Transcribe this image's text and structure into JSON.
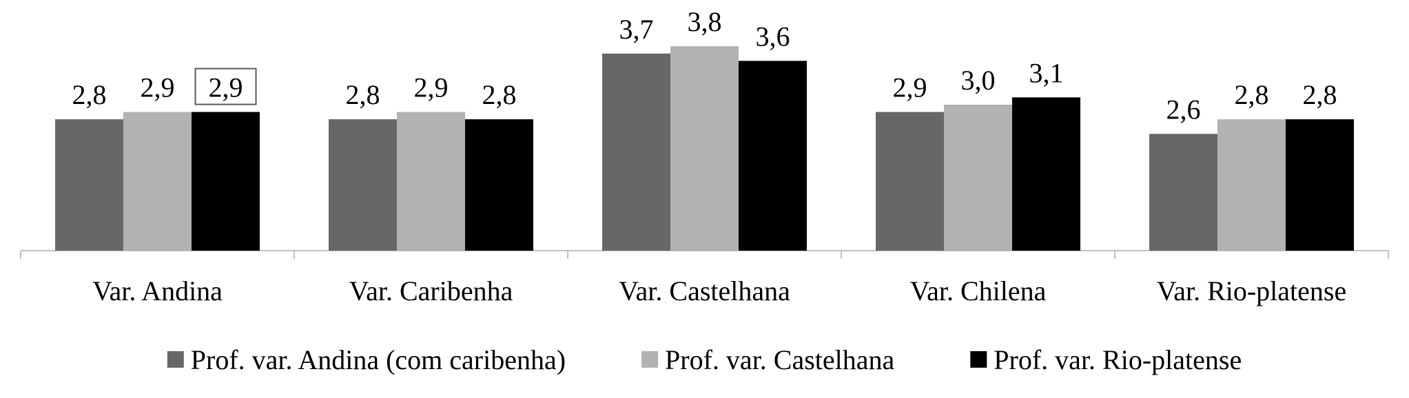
{
  "chart_data": {
    "type": "bar",
    "title": "",
    "xlabel": "",
    "ylabel": "",
    "categories": [
      "Var. Andina",
      "Var. Caribenha",
      "Var. Castelhana",
      "Var. Chilena",
      "Var. Rio-platense"
    ],
    "series": [
      {
        "name": "Prof. var. Andina (com caribenha)",
        "color": "#676767",
        "values": [
          2.8,
          2.8,
          3.7,
          2.9,
          2.6
        ],
        "labels": [
          "2,8",
          "2,8",
          "3,7",
          "2,9",
          "2,6"
        ]
      },
      {
        "name": "Prof. var. Castelhana",
        "color": "#b2b2b2",
        "values": [
          2.9,
          2.9,
          3.8,
          3.0,
          2.8
        ],
        "labels": [
          "2,9",
          "2,9",
          "3,8",
          "3,0",
          "2,8"
        ]
      },
      {
        "name": "Prof. var. Rio-platense",
        "color": "#000000",
        "values": [
          2.9,
          2.8,
          3.6,
          3.1,
          2.8
        ],
        "labels": [
          "2,9",
          "2,8",
          "3,6",
          "3,1",
          "2,8"
        ]
      }
    ],
    "highlighted_label": {
      "series": 2,
      "category": 0
    },
    "ylim": [
      1,
      4
    ],
    "grid": false,
    "legend_position": "bottom"
  }
}
